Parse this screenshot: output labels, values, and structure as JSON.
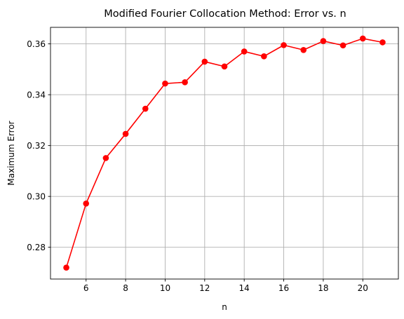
{
  "chart_data": {
    "type": "line",
    "title": "Modified Fourier Collocation Method: Error vs. n",
    "xlabel": "n",
    "ylabel": "Maximum Error",
    "xlim": [
      4.2,
      21.8
    ],
    "ylim": [
      0.2675,
      0.3665
    ],
    "xticks": [
      6,
      8,
      10,
      12,
      14,
      16,
      18,
      20
    ],
    "yticks": [
      0.28,
      0.3,
      0.32,
      0.34,
      0.36
    ],
    "ytick_labels": [
      "0.28",
      "0.30",
      "0.32",
      "0.34",
      "0.36"
    ],
    "grid": true,
    "color": "#ff0000",
    "marker": "circle",
    "series": [
      {
        "x": [
          5,
          6,
          7,
          8,
          9,
          10,
          11,
          12,
          13,
          14,
          15,
          16,
          17,
          18,
          19,
          20,
          21
        ],
        "values": [
          0.272,
          0.2972,
          0.3151,
          0.3246,
          0.3345,
          0.3444,
          0.3449,
          0.353,
          0.3511,
          0.357,
          0.3551,
          0.3595,
          0.3576,
          0.3611,
          0.3594,
          0.3621,
          0.3606
        ]
      }
    ]
  }
}
